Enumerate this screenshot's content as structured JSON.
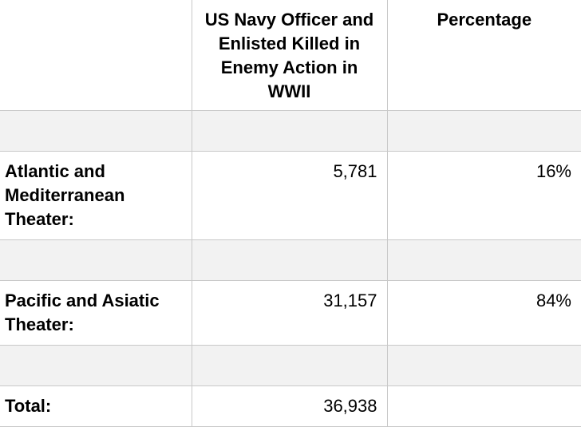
{
  "table": {
    "headers": {
      "blank": "",
      "killed": "US Navy Officer and Enlisted Killed in Enemy Action in WWII",
      "percentage": "Percentage"
    },
    "rows": [
      {
        "label": "Atlantic and Mediterranean Theater:",
        "killed": "5,781",
        "percentage": "16%"
      },
      {
        "label": "Pacific and Asiatic Theater:",
        "killed": "31,157",
        "percentage": "84%"
      },
      {
        "label": "Total:",
        "killed": "36,938",
        "percentage": ""
      }
    ]
  }
}
